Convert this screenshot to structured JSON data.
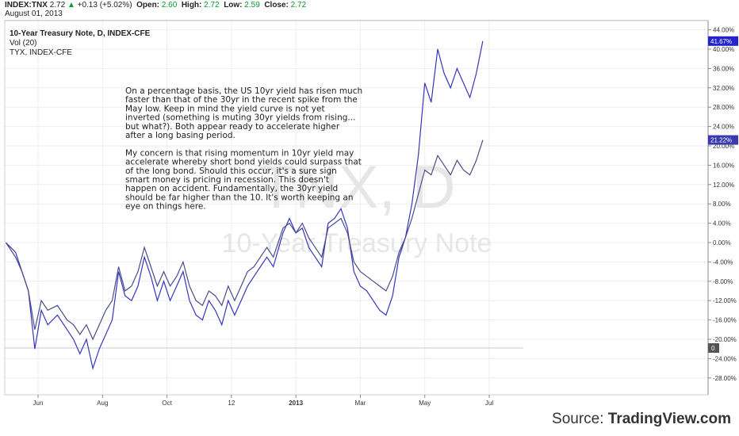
{
  "header": {
    "symbol": "INDEX:TNX",
    "last": "2.72",
    "arrow": "▲",
    "change": "+0.13 (+5.02%)",
    "open_label": "Open:",
    "open": "2.60",
    "high_label": "High:",
    "high": "2.72",
    "low_label": "Low:",
    "low": "2.59",
    "close_label": "Close:",
    "close": "2.72",
    "date": "August 01, 2013"
  },
  "legend": {
    "title": "10-Year Treasury Note, D, INDEX-CFE",
    "vol": "Vol (20)",
    "compare": "TYX, INDEX-CFE"
  },
  "annotation": [
    "On a percentage basis, the US 10yr yield has risen much",
    "faster than that of the 30yr in the recent spike from the",
    "May low.  Keep in mind the yield curve is not yet",
    "inverted (something is muting 30yr yields from rising...",
    "but what?).  Both appear ready to accelerate higher",
    "after a long basing period.",
    "",
    "My concern is that rising momentum in 10yr yield may",
    "accelerate whereby short bond yields could surpass that",
    "of the long bond.  Should this occur, it's a sure sign",
    "smart money is pricing in recession.  This doesn't",
    "happen on accident.  Fundamentally, the 30yr yield",
    "should be far higher than the 10.  It's worth keeping an",
    "eye on things here."
  ],
  "watermark": {
    "symbol": "TNX, D",
    "name": "10-Year Treasury Note"
  },
  "source": {
    "prefix": "Source: ",
    "brand": "TradingView.com"
  },
  "colors": {
    "series": "#3535c0",
    "tnx_badge": "#2424cc",
    "tyx_badge": "#3a3ab0",
    "vol_badge": "#555555"
  },
  "chart_data": {
    "type": "line",
    "ylabel": "",
    "ylim": [
      -30,
      44
    ],
    "y_ticks": [
      "44.00%",
      "40.00%",
      "36.00%",
      "32.00%",
      "28.00%",
      "24.00%",
      "20.00%",
      "16.00%",
      "12.00%",
      "8.00%",
      "4.00%",
      "0.00%",
      "-4.00%",
      "-8.00%",
      "-12.00%",
      "-16.00%",
      "-20.00%",
      "-24.00%",
      "-28.00%"
    ],
    "y_tick_values": [
      44,
      40,
      36,
      32,
      28,
      24,
      20,
      16,
      12,
      8,
      4,
      0,
      -4,
      -8,
      -12,
      -16,
      -20,
      -24,
      -28
    ],
    "x_ticks": [
      "Jun",
      "Aug",
      "Oct",
      "12",
      "2013",
      "Mar",
      "May",
      "Jul"
    ],
    "x_tick_positions": [
      1,
      3,
      5,
      7,
      9,
      11,
      13,
      15
    ],
    "x_range": [
      0,
      16.3
    ],
    "grid": true,
    "last_value_labels": {
      "tnx": "41.67%",
      "tyx": "21.22%",
      "vol": "0"
    },
    "series": [
      {
        "symbol": "TNX",
        "values": [
          [
            0,
            0
          ],
          [
            0.3,
            -2
          ],
          [
            0.5,
            -6
          ],
          [
            0.7,
            -10
          ],
          [
            0.9,
            -22
          ],
          [
            1.1,
            -14
          ],
          [
            1.3,
            -17
          ],
          [
            1.6,
            -15
          ],
          [
            1.9,
            -18
          ],
          [
            2.1,
            -20
          ],
          [
            2.3,
            -23
          ],
          [
            2.5,
            -20
          ],
          [
            2.7,
            -26
          ],
          [
            2.9,
            -22
          ],
          [
            3.1,
            -19
          ],
          [
            3.3,
            -16
          ],
          [
            3.5,
            -6
          ],
          [
            3.7,
            -11
          ],
          [
            3.9,
            -12
          ],
          [
            4.1,
            -9
          ],
          [
            4.3,
            -3
          ],
          [
            4.5,
            -7
          ],
          [
            4.7,
            -12
          ],
          [
            4.9,
            -8
          ],
          [
            5.1,
            -12
          ],
          [
            5.3,
            -9
          ],
          [
            5.5,
            -6
          ],
          [
            5.7,
            -12
          ],
          [
            5.9,
            -15
          ],
          [
            6.1,
            -16
          ],
          [
            6.3,
            -12
          ],
          [
            6.5,
            -14
          ],
          [
            6.7,
            -17
          ],
          [
            6.9,
            -12
          ],
          [
            7.1,
            -15
          ],
          [
            7.3,
            -12
          ],
          [
            7.5,
            -9
          ],
          [
            7.7,
            -7
          ],
          [
            7.9,
            -5
          ],
          [
            8.1,
            -3
          ],
          [
            8.3,
            -5
          ],
          [
            8.6,
            2
          ],
          [
            8.8,
            5
          ],
          [
            9.0,
            2
          ],
          [
            9.2,
            3
          ],
          [
            9.4,
            -1
          ],
          [
            9.6,
            -3
          ],
          [
            9.8,
            -5
          ],
          [
            10.0,
            4
          ],
          [
            10.2,
            5
          ],
          [
            10.4,
            7
          ],
          [
            10.6,
            3
          ],
          [
            10.8,
            -6
          ],
          [
            11.0,
            -9
          ],
          [
            11.2,
            -10
          ],
          [
            11.4,
            -12
          ],
          [
            11.6,
            -14
          ],
          [
            11.8,
            -15
          ],
          [
            12.0,
            -11
          ],
          [
            12.2,
            -3
          ],
          [
            12.4,
            1
          ],
          [
            12.6,
            8
          ],
          [
            12.8,
            18
          ],
          [
            13.0,
            33
          ],
          [
            13.2,
            29
          ],
          [
            13.4,
            40
          ],
          [
            13.6,
            35
          ],
          [
            13.8,
            32
          ],
          [
            14.0,
            36
          ],
          [
            14.2,
            33
          ],
          [
            14.4,
            30
          ],
          [
            14.6,
            35
          ],
          [
            14.8,
            41.67
          ]
        ]
      },
      {
        "symbol": "TYX",
        "values": [
          [
            0,
            0
          ],
          [
            0.3,
            -3
          ],
          [
            0.5,
            -6
          ],
          [
            0.7,
            -10
          ],
          [
            0.9,
            -18
          ],
          [
            1.1,
            -12
          ],
          [
            1.3,
            -14
          ],
          [
            1.6,
            -13
          ],
          [
            1.9,
            -16
          ],
          [
            2.1,
            -17
          ],
          [
            2.3,
            -19
          ],
          [
            2.5,
            -17
          ],
          [
            2.7,
            -20
          ],
          [
            2.9,
            -17
          ],
          [
            3.1,
            -14
          ],
          [
            3.3,
            -12
          ],
          [
            3.5,
            -5
          ],
          [
            3.7,
            -10
          ],
          [
            3.9,
            -9
          ],
          [
            4.1,
            -6
          ],
          [
            4.3,
            -1
          ],
          [
            4.5,
            -5
          ],
          [
            4.7,
            -9
          ],
          [
            4.9,
            -6
          ],
          [
            5.1,
            -9
          ],
          [
            5.3,
            -7
          ],
          [
            5.5,
            -4
          ],
          [
            5.7,
            -9
          ],
          [
            5.9,
            -12
          ],
          [
            6.1,
            -13
          ],
          [
            6.3,
            -10
          ],
          [
            6.5,
            -11
          ],
          [
            6.7,
            -13
          ],
          [
            6.9,
            -9
          ],
          [
            7.1,
            -12
          ],
          [
            7.3,
            -9
          ],
          [
            7.5,
            -6
          ],
          [
            7.7,
            -5
          ],
          [
            7.9,
            -3
          ],
          [
            8.1,
            -1
          ],
          [
            8.3,
            -3
          ],
          [
            8.6,
            3
          ],
          [
            8.8,
            4
          ],
          [
            9.0,
            2
          ],
          [
            9.2,
            4
          ],
          [
            9.4,
            1
          ],
          [
            9.6,
            -1
          ],
          [
            9.8,
            -3
          ],
          [
            10.0,
            3
          ],
          [
            10.2,
            4
          ],
          [
            10.4,
            5
          ],
          [
            10.6,
            2
          ],
          [
            10.8,
            -4
          ],
          [
            11.0,
            -6
          ],
          [
            11.2,
            -7
          ],
          [
            11.4,
            -8
          ],
          [
            11.6,
            -9
          ],
          [
            11.8,
            -10
          ],
          [
            12.0,
            -7
          ],
          [
            12.2,
            -2
          ],
          [
            12.4,
            1
          ],
          [
            12.6,
            5
          ],
          [
            12.8,
            10
          ],
          [
            13.0,
            15
          ],
          [
            13.2,
            14
          ],
          [
            13.4,
            18
          ],
          [
            13.6,
            16
          ],
          [
            13.8,
            14
          ],
          [
            14.0,
            17
          ],
          [
            14.2,
            15
          ],
          [
            14.4,
            14
          ],
          [
            14.6,
            17
          ],
          [
            14.8,
            21.22
          ]
        ]
      }
    ]
  }
}
